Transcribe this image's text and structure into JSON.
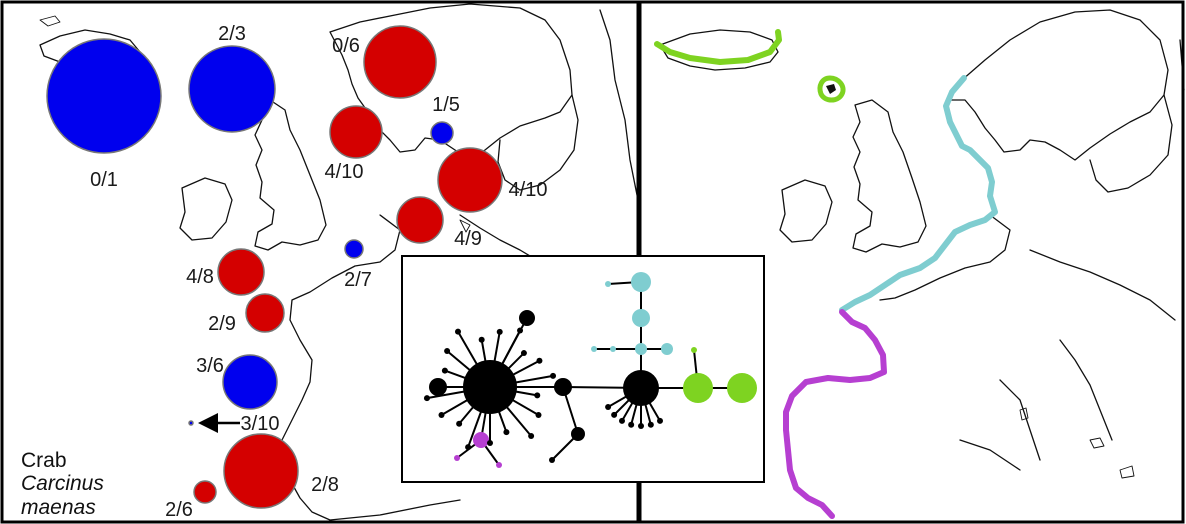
{
  "species": {
    "common_name": "Crab",
    "latin_genus": "Carcinus",
    "latin_species": "maenas"
  },
  "colors": {
    "clade_red": "#d40000",
    "clade_blue": "#0000ee",
    "clade_black": "#000000",
    "clade_cyan": "#7fcdd0",
    "clade_green": "#7ed321",
    "clade_purple": "#b63fd1",
    "pie_outline": "#777777",
    "coast": "#111111"
  },
  "left_panel": {
    "sites": [
      {
        "label": "0/1",
        "color": "blue"
      },
      {
        "label": "2/3",
        "color": "blue"
      },
      {
        "label": "0/6",
        "color": "red"
      },
      {
        "label": "1/5",
        "color": "blue"
      },
      {
        "label": "4/10",
        "color": "red"
      },
      {
        "label": "4/10",
        "color": "red"
      },
      {
        "label": "4/9",
        "color": "red"
      },
      {
        "label": "2/7",
        "color": "blue"
      },
      {
        "label": "4/8",
        "color": "red"
      },
      {
        "label": "2/9",
        "color": "red"
      },
      {
        "label": "3/6",
        "color": "blue"
      },
      {
        "label": "3/10",
        "color": "blue"
      },
      {
        "label": "2/8",
        "color": "red"
      },
      {
        "label": "2/6",
        "color": "red"
      }
    ]
  },
  "right_panel": {
    "coastline_lineages": [
      "green",
      "cyan",
      "purple"
    ]
  },
  "network": {
    "haplogroups": [
      "black",
      "cyan",
      "green",
      "purple"
    ]
  }
}
